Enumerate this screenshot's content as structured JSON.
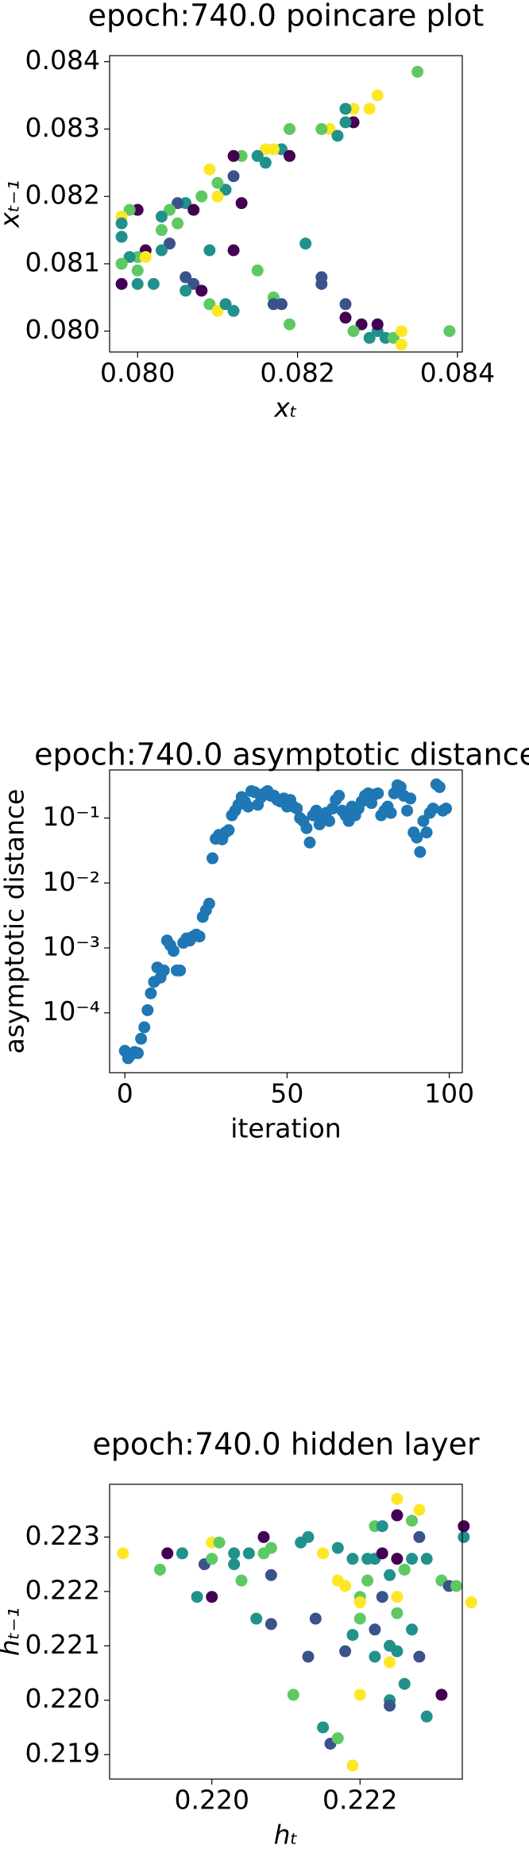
{
  "chart_data": [
    {
      "type": "scatter",
      "title": "epoch:740.0 poincare plot",
      "xlabel": "xₜ",
      "ylabel": "xₜ₋₁",
      "xlim": [
        0.07965,
        0.08406
      ],
      "ylim": [
        0.07969,
        0.08409
      ],
      "xticks": [
        {
          "value": 0.08,
          "label": "0.080"
        },
        {
          "value": 0.082,
          "label": "0.082"
        },
        {
          "value": 0.084,
          "label": "0.084"
        }
      ],
      "yticks": [
        {
          "value": 0.08,
          "label": "0.080"
        },
        {
          "value": 0.081,
          "label": "0.081"
        },
        {
          "value": 0.082,
          "label": "0.082"
        },
        {
          "value": 0.083,
          "label": "0.083"
        },
        {
          "value": 0.084,
          "label": "0.084"
        }
      ],
      "x": [
        0.0835,
        0.083,
        0.0829,
        0.0827,
        0.0826,
        0.0827,
        0.0826,
        0.0824,
        0.0825,
        0.0823,
        0.0819,
        0.0818,
        0.0817,
        0.0816,
        0.0819,
        0.0815,
        0.0816,
        0.0813,
        0.0812,
        0.0812,
        0.0811,
        0.081,
        0.0809,
        0.081,
        0.0813,
        0.0808,
        0.0806,
        0.0807,
        0.0805,
        0.0804,
        0.0803,
        0.0805,
        0.08,
        0.0799,
        0.0798,
        0.0798,
        0.0803,
        0.0804,
        0.0803,
        0.0801,
        0.08,
        0.0801,
        0.0799,
        0.0798,
        0.08,
        0.0798,
        0.08,
        0.0798,
        0.0802,
        0.0806,
        0.0807,
        0.0808,
        0.0806,
        0.0809,
        0.081,
        0.0811,
        0.0812,
        0.0809,
        0.0812,
        0.0815,
        0.0817,
        0.0817,
        0.0818,
        0.0819,
        0.0821,
        0.0823,
        0.0823,
        0.0826,
        0.0826,
        0.0828,
        0.0827,
        0.0829,
        0.083,
        0.0831,
        0.0832,
        0.0833,
        0.0833,
        0.083,
        0.0839
      ],
      "values": [
        0.08385,
        0.0835,
        0.0833,
        0.0833,
        0.0833,
        0.0831,
        0.0831,
        0.083,
        0.0829,
        0.083,
        0.083,
        0.0827,
        0.0827,
        0.0827,
        0.0826,
        0.0826,
        0.0825,
        0.0826,
        0.0826,
        0.0823,
        0.0821,
        0.0822,
        0.0824,
        0.082,
        0.0819,
        0.082,
        0.0819,
        0.0818,
        0.0819,
        0.0818,
        0.0817,
        0.0816,
        0.0818,
        0.0818,
        0.0817,
        0.0816,
        0.0815,
        0.0813,
        0.0812,
        0.0812,
        0.0811,
        0.0811,
        0.0811,
        0.0814,
        0.0809,
        0.081,
        0.0807,
        0.0807,
        0.0807,
        0.0808,
        0.0807,
        0.0806,
        0.0806,
        0.0804,
        0.0803,
        0.0804,
        0.0803,
        0.0812,
        0.0812,
        0.0809,
        0.0805,
        0.0804,
        0.0804,
        0.0801,
        0.0813,
        0.0807,
        0.0808,
        0.0804,
        0.0802,
        0.0801,
        0.08,
        0.0799,
        0.08,
        0.0799,
        0.0799,
        0.08,
        0.0798,
        0.0801,
        0.08
      ],
      "colors": [
        "#5ec962",
        "#fde725",
        "#fde725",
        "#fde725",
        "#21918c",
        "#440154",
        "#21918c",
        "#fde725",
        "#21918c",
        "#5ec962",
        "#5ec962",
        "#21918c",
        "#fde725",
        "#fde725",
        "#440154",
        "#21918c",
        "#21918c",
        "#5ec962",
        "#440154",
        "#3b528b",
        "#21918c",
        "#5ec962",
        "#fde725",
        "#fde725",
        "#440154",
        "#5ec962",
        "#21918c",
        "#440154",
        "#3b528b",
        "#5ec962",
        "#21918c",
        "#5ec962",
        "#440154",
        "#5ec962",
        "#fde725",
        "#21918c",
        "#5ec962",
        "#3b528b",
        "#21918c",
        "#440154",
        "#5ec962",
        "#fde725",
        "#21918c",
        "#21918c",
        "#5ec962",
        "#5ec962",
        "#21918c",
        "#440154",
        "#21918c",
        "#3b528b",
        "#3b528b",
        "#440154",
        "#21918c",
        "#5ec962",
        "#fde725",
        "#21918c",
        "#21918c",
        "#21918c",
        "#440154",
        "#5ec962",
        "#5ec962",
        "#3b528b",
        "#3b528b",
        "#5ec962",
        "#21918c",
        "#3b528b",
        "#3b528b",
        "#3b528b",
        "#440154",
        "#440154",
        "#5ec962",
        "#21918c",
        "#21918c",
        "#21918c",
        "#5ec962",
        "#fde725",
        "#fde725",
        "#440154",
        "#5ec962"
      ]
    },
    {
      "type": "scatter",
      "title": "epoch:740.0 asymptotic distance",
      "xlabel": "iteration",
      "ylabel": "asymptotic distance",
      "log_y": true,
      "color": "#1f77b4",
      "xlim": [
        -4.7,
        104
      ],
      "ylim": [
        1.2e-05,
        0.55
      ],
      "xticks": [
        0,
        50,
        100
      ],
      "yticks": [
        {
          "value": 0.0001,
          "label": "10⁻⁴"
        },
        {
          "value": 0.001,
          "label": "10⁻³"
        },
        {
          "value": 0.01,
          "label": "10⁻²"
        },
        {
          "value": 0.1,
          "label": "10⁻¹"
        }
      ],
      "x": [
        0,
        1,
        2,
        3,
        4,
        5,
        6,
        7,
        8,
        9,
        10,
        11,
        12,
        13,
        14,
        15,
        16,
        17,
        18,
        19,
        20,
        21,
        22,
        23,
        24,
        25,
        26,
        27,
        28,
        29,
        30,
        31,
        32,
        33,
        34,
        35,
        36,
        37,
        38,
        39,
        40,
        41,
        42,
        43,
        44,
        45,
        46,
        47,
        48,
        49,
        50,
        51,
        52,
        53,
        54,
        55,
        56,
        57,
        58,
        59,
        60,
        61,
        62,
        63,
        64,
        65,
        66,
        67,
        68,
        69,
        70,
        71,
        72,
        73,
        74,
        75,
        76,
        77,
        78,
        79,
        80,
        81,
        82,
        83,
        84,
        85,
        86,
        87,
        88,
        89,
        90,
        91,
        92,
        93,
        94,
        95,
        96,
        97,
        98,
        99
      ],
      "values": [
        2.6e-05,
        2e-05,
        2.3e-05,
        2.5e-05,
        2.4e-05,
        4e-05,
        6e-05,
        0.00011,
        0.0002,
        0.0003,
        0.0005,
        0.00035,
        0.00045,
        0.0013,
        0.0011,
        0.0009,
        0.00045,
        0.00045,
        0.0012,
        0.0014,
        0.0013,
        0.0015,
        0.0016,
        0.0015,
        0.003,
        0.0038,
        0.0048,
        0.024,
        0.048,
        0.055,
        0.047,
        0.06,
        0.065,
        0.11,
        0.13,
        0.16,
        0.21,
        0.18,
        0.15,
        0.26,
        0.25,
        0.16,
        0.21,
        0.24,
        0.26,
        0.22,
        0.22,
        0.19,
        0.18,
        0.2,
        0.15,
        0.19,
        0.15,
        0.14,
        0.1,
        0.09,
        0.07,
        0.042,
        0.11,
        0.13,
        0.08,
        0.11,
        0.12,
        0.09,
        0.14,
        0.19,
        0.22,
        0.13,
        0.11,
        0.09,
        0.15,
        0.11,
        0.14,
        0.18,
        0.22,
        0.24,
        0.17,
        0.23,
        0.24,
        0.11,
        0.13,
        0.15,
        0.12,
        0.24,
        0.32,
        0.3,
        0.22,
        0.13,
        0.2,
        0.06,
        0.05,
        0.03,
        0.09,
        0.06,
        0.12,
        0.14,
        0.33,
        0.3,
        0.13,
        0.14
      ]
    },
    {
      "type": "scatter",
      "title": "epoch:740.0 hidden layer",
      "xlabel": "hₜ",
      "ylabel": "hₜ₋₁",
      "xlim": [
        0.21862,
        0.22338
      ],
      "ylim": [
        0.21855,
        0.22397
      ],
      "xticks": [
        {
          "value": 0.22,
          "label": "0.220"
        },
        {
          "value": 0.222,
          "label": "0.222"
        }
      ],
      "yticks": [
        {
          "value": 0.219,
          "label": "0.219"
        },
        {
          "value": 0.22,
          "label": "0.220"
        },
        {
          "value": 0.221,
          "label": "0.221"
        },
        {
          "value": 0.222,
          "label": "0.222"
        },
        {
          "value": 0.223,
          "label": "0.223"
        }
      ],
      "x": [
        0.2188,
        0.2194,
        0.2193,
        0.2196,
        0.2198,
        0.2199,
        0.22,
        0.22,
        0.2201,
        0.22,
        0.2203,
        0.2203,
        0.2204,
        0.2205,
        0.2206,
        0.2207,
        0.2207,
        0.2208,
        0.2208,
        0.2208,
        0.2211,
        0.2212,
        0.2213,
        0.2213,
        0.2214,
        0.2215,
        0.2215,
        0.2216,
        0.2217,
        0.2217,
        0.2218,
        0.2217,
        0.2218,
        0.2219,
        0.222,
        0.222,
        0.222,
        0.2219,
        0.2219,
        0.222,
        0.2221,
        0.2221,
        0.2222,
        0.2222,
        0.2222,
        0.2222,
        0.2223,
        0.2223,
        0.2224,
        0.2223,
        0.2224,
        0.2224,
        0.2224,
        0.2224,
        0.2225,
        0.2225,
        0.2225,
        0.2225,
        0.2225,
        0.2225,
        0.2225,
        0.2226,
        0.2226,
        0.2227,
        0.2227,
        0.2227,
        0.2228,
        0.2228,
        0.2228,
        0.2229,
        0.2229,
        0.2231,
        0.2231,
        0.2232,
        0.2233,
        0.2234,
        0.2234,
        0.2235
      ],
      "values": [
        0.2227,
        0.2227,
        0.2224,
        0.2227,
        0.2219,
        0.2225,
        0.2226,
        0.2229,
        0.2229,
        0.2219,
        0.2225,
        0.2227,
        0.2222,
        0.2227,
        0.2215,
        0.223,
        0.2227,
        0.2228,
        0.2214,
        0.2223,
        0.2201,
        0.2229,
        0.223,
        0.2208,
        0.2215,
        0.2227,
        0.2195,
        0.2192,
        0.2193,
        0.2222,
        0.2221,
        0.2228,
        0.2209,
        0.2226,
        0.2219,
        0.2218,
        0.2201,
        0.2188,
        0.2212,
        0.2215,
        0.2226,
        0.2222,
        0.2226,
        0.2213,
        0.2208,
        0.2232,
        0.2232,
        0.2227,
        0.2223,
        0.2219,
        0.221,
        0.2207,
        0.22,
        0.2199,
        0.2237,
        0.2234,
        0.2234,
        0.2226,
        0.2219,
        0.2216,
        0.2209,
        0.2224,
        0.2203,
        0.2233,
        0.2226,
        0.2213,
        0.2235,
        0.223,
        0.2208,
        0.2226,
        0.2197,
        0.2222,
        0.2201,
        0.2221,
        0.2221,
        0.223,
        0.2232,
        0.2218
      ],
      "colors": [
        "#fde725",
        "#440154",
        "#5ec962",
        "#21918c",
        "#21918c",
        "#3b528b",
        "#5ec962",
        "#fde725",
        "#5ec962",
        "#440154",
        "#21918c",
        "#21918c",
        "#5ec962",
        "#21918c",
        "#21918c",
        "#440154",
        "#5ec962",
        "#5ec962",
        "#3b528b",
        "#3b528b",
        "#5ec962",
        "#21918c",
        "#21918c",
        "#3b528b",
        "#3b528b",
        "#fde725",
        "#21918c",
        "#3b528b",
        "#5ec962",
        "#fde725",
        "#fde725",
        "#21918c",
        "#3b528b",
        "#21918c",
        "#5ec962",
        "#fde725",
        "#fde725",
        "#fde725",
        "#21918c",
        "#5ec962",
        "#21918c",
        "#5ec962",
        "#21918c",
        "#3b528b",
        "#21918c",
        "#5ec962",
        "#21918c",
        "#440154",
        "#21918c",
        "#3b528b",
        "#21918c",
        "#fde725",
        "#21918c",
        "#3b528b",
        "#fde725",
        "#3b528b",
        "#440154",
        "#440154",
        "#fde725",
        "#5ec962",
        "#21918c",
        "#5ec962",
        "#21918c",
        "#5ec962",
        "#21918c",
        "#21918c",
        "#fde725",
        "#3b528b",
        "#3b528b",
        "#21918c",
        "#21918c",
        "#5ec962",
        "#440154",
        "#3b528b",
        "#5ec962",
        "#21918c",
        "#440154",
        "#fde725"
      ]
    }
  ]
}
